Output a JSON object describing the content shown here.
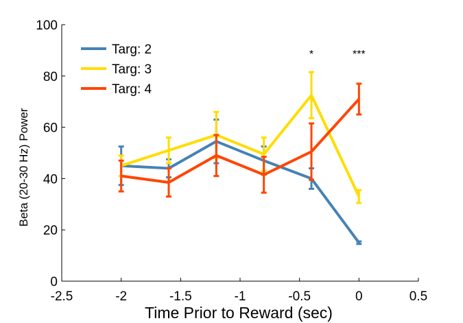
{
  "chart_data": {
    "type": "line",
    "xlabel": "Time Prior to Reward (sec)",
    "ylabel": "Beta  (20-30 Hz) Power",
    "xlim": [
      -2.5,
      0.5
    ],
    "ylim": [
      0,
      100
    ],
    "xticks": [
      -2.5,
      -2,
      -1.5,
      -1,
      -0.5,
      0,
      0.5
    ],
    "xtick_labels": [
      "-2.5",
      "-2",
      "-1.5",
      "-1",
      "-0.5",
      "0",
      "0.5"
    ],
    "yticks": [
      0,
      20,
      40,
      60,
      80,
      100
    ],
    "ytick_labels": [
      "0",
      "20",
      "40",
      "60",
      "80",
      "100"
    ],
    "grid": false,
    "legend_position": "top-left",
    "x": [
      -2.0,
      -1.6,
      -1.2,
      -0.8,
      -0.4,
      0.0
    ],
    "series": [
      {
        "name": "Targ: 2",
        "color": "#4682b4",
        "values": [
          45,
          44,
          54.5,
          47,
          40,
          15
        ],
        "err": [
          7.5,
          3.5,
          8.5,
          5.5,
          4,
          0.5
        ]
      },
      {
        "name": "Targ: 3",
        "color": "#ffdd00",
        "values": [
          45,
          51,
          57,
          49.5,
          72.5,
          33
        ],
        "err": [
          4,
          5,
          9,
          6.5,
          9,
          2.5
        ]
      },
      {
        "name": "Targ: 4",
        "color": "#ff4500",
        "values": [
          41,
          38.5,
          49,
          41.5,
          50.5,
          71
        ],
        "err": [
          6,
          5.5,
          8,
          7,
          11,
          6
        ]
      }
    ],
    "annotations": [
      {
        "x": -0.4,
        "y": 89,
        "text": "*"
      },
      {
        "x": 0.0,
        "y": 89,
        "text": "***"
      }
    ]
  }
}
